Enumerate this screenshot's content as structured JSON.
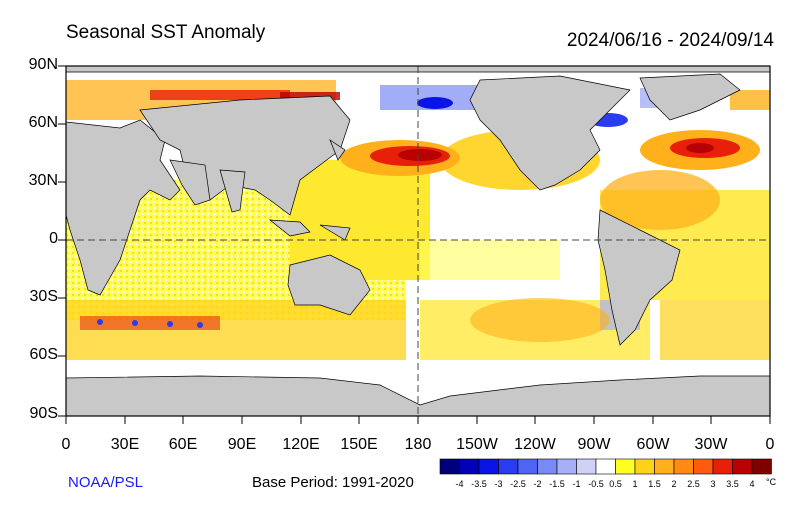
{
  "title": "Seasonal SST Anomaly",
  "date_range": "2024/06/16 - 2024/09/14",
  "lat_labels": [
    "90N",
    "60N",
    "30N",
    "0",
    "30S",
    "60S",
    "90S"
  ],
  "lon_labels": [
    "0",
    "30E",
    "60E",
    "90E",
    "120E",
    "150E",
    "180",
    "150W",
    "120W",
    "90W",
    "60W",
    "30W",
    "0"
  ],
  "source": "NOAA/PSL",
  "base_period": "Base Period: 1991-2020",
  "colorbar": {
    "labels": [
      "-4",
      "-3.5",
      "-3",
      "-2.5",
      "-2",
      "-1.5",
      "-1",
      "-0.5",
      "0.5",
      "1",
      "1.5",
      "2",
      "2.5",
      "3",
      "3.5",
      "4"
    ],
    "unit": "°C",
    "colors": [
      "#00007a",
      "#0000b8",
      "#0a14e6",
      "#2a3cf0",
      "#4f64f5",
      "#7a8af5",
      "#a6aef5",
      "#cfd2f7",
      "#ffffff",
      "#ffff20",
      "#ffd21a",
      "#ffb01a",
      "#ff8a14",
      "#ff5a10",
      "#e8200a",
      "#b80000",
      "#800000"
    ]
  },
  "colors": {
    "land": "#c8c8c8",
    "ocean_base": "#ffffff",
    "coast": "#000000"
  }
}
